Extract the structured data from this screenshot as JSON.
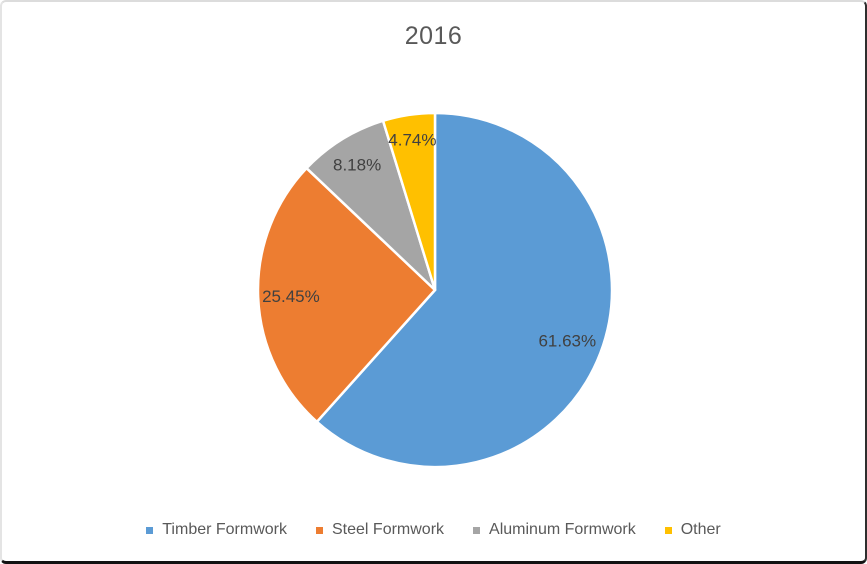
{
  "chart_data": {
    "type": "pie",
    "title": "2016",
    "categories": [
      "Timber Formwork",
      "Steel Formwork",
      "Aluminum Formwork",
      "Other"
    ],
    "values": [
      61.63,
      25.45,
      8.18,
      4.74
    ],
    "slices": [
      {
        "name": "Timber Formwork",
        "value": 61.63,
        "label": "61.63%",
        "color": "#5B9BD5"
      },
      {
        "name": "Steel Formwork",
        "value": 25.45,
        "label": "25.45%",
        "color": "#ED7D31"
      },
      {
        "name": "Aluminum Formwork",
        "value": 8.18,
        "label": "8.18%",
        "color": "#A5A5A5"
      },
      {
        "name": "Other",
        "value": 4.74,
        "label": "4.74%",
        "color": "#FFC000"
      }
    ],
    "start_angle": "12 o'clock",
    "direction": "clockwise",
    "legend_position": "bottom",
    "background_color": "#FFFFFF",
    "title_color": "#595959",
    "label_color": "#404040",
    "legend_text_color": "#595959"
  }
}
